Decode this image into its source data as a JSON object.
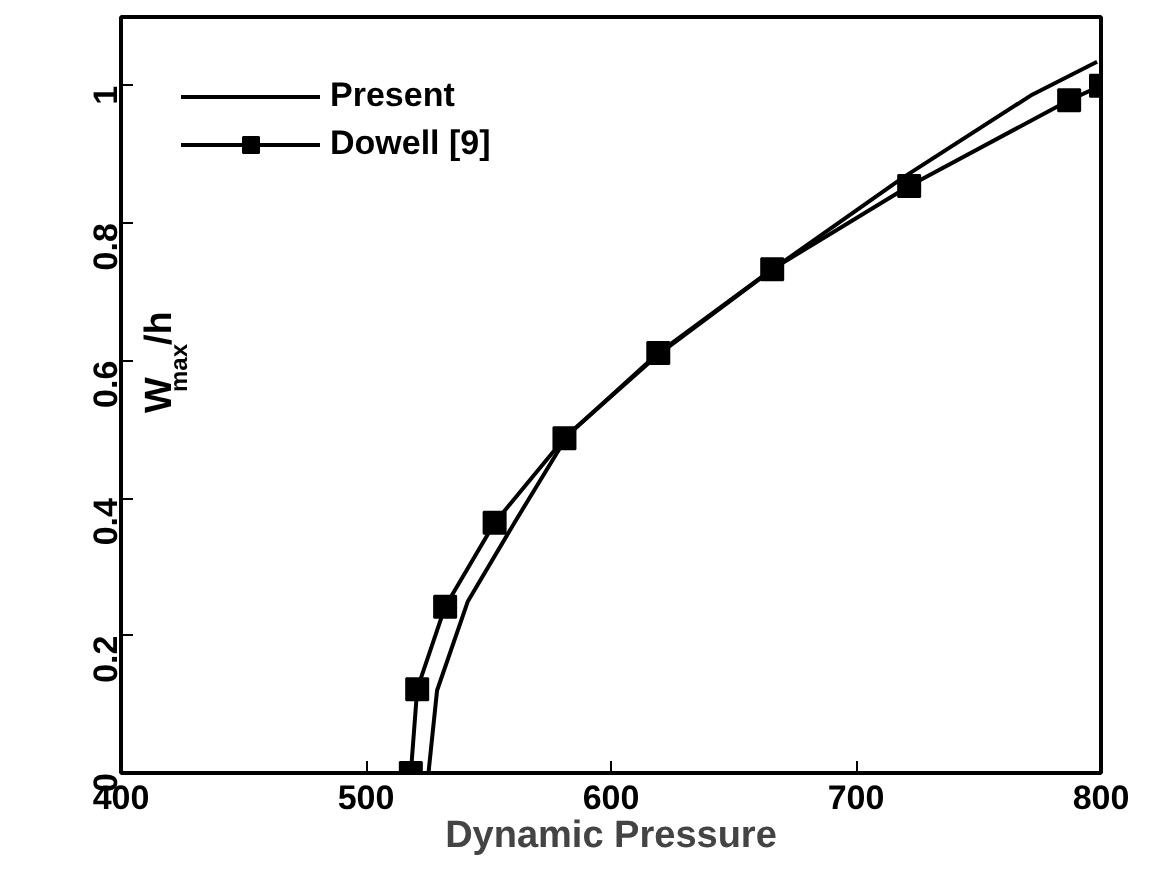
{
  "chart_data": {
    "type": "line",
    "xlabel": "Dynamic Pressure",
    "ylabel": "W$_{max}$/h",
    "xlim": [
      400,
      800
    ],
    "ylim": [
      0,
      1.1
    ],
    "xticks": [
      400,
      500,
      600,
      700,
      800
    ],
    "yticks": [
      0,
      0.2,
      0.4,
      0.6,
      0.8,
      1
    ],
    "legend": "top left",
    "grid": false,
    "series": [
      {
        "name": "Present",
        "color": "#000000",
        "marker": "none",
        "x": [
          525.5,
          529,
          541.6,
          560.9,
          582.6,
          619,
          666,
          719,
          771.9,
          798.4
        ],
        "values": [
          0,
          0.12,
          0.25,
          0.366,
          0.493,
          0.608,
          0.733,
          0.866,
          0.987,
          1.035
        ]
      },
      {
        "name": "Dowell [9]",
        "color": "#000000",
        "marker": "square",
        "x": [
          518.3,
          520.9,
          532.3,
          552.5,
          581,
          619.3,
          665.8,
          721.7,
          787,
          800
        ],
        "values": [
          0,
          0.122,
          0.242,
          0.364,
          0.487,
          0.611,
          0.733,
          0.854,
          0.979,
          1.0
        ]
      }
    ]
  }
}
